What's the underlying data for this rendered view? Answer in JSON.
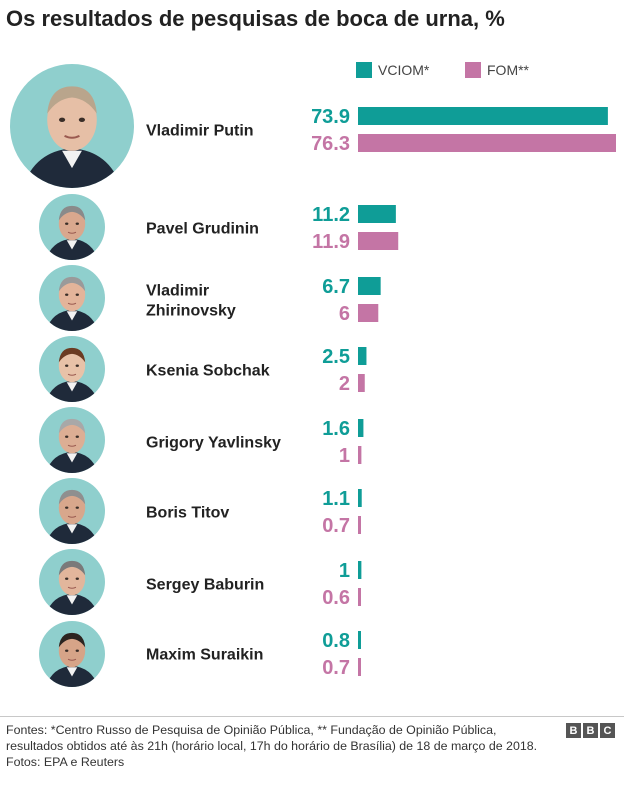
{
  "title": "Os resultados de pesquisas de boca de urna, %",
  "legend": [
    {
      "label": "VCIOM*",
      "color": "#0f9d97"
    },
    {
      "label": "FOM**",
      "color": "#c475a5"
    }
  ],
  "chart_data": {
    "type": "bar",
    "orientation": "horizontal",
    "title": "Os resultados de pesquisas de boca de urna, %",
    "categories": [
      "Vladimir Putin",
      "Pavel Grudinin",
      "Vladimir Zhirinovsky",
      "Ksenia Sobchak",
      "Grigory Yavlinsky",
      "Boris Titov",
      "Sergey Baburin",
      "Maxim Suraikin"
    ],
    "series": [
      {
        "name": "VCIOM*",
        "color": "#0f9d97",
        "values": [
          73.9,
          11.2,
          6.7,
          2.5,
          1.6,
          1.1,
          1,
          0.8
        ],
        "labels": [
          "73.9",
          "11.2",
          "6.7",
          "2.5",
          "1.6",
          "1.1",
          "1",
          "0.8"
        ]
      },
      {
        "name": "FOM**",
        "color": "#c475a5",
        "values": [
          76.3,
          11.9,
          6,
          2,
          1,
          0.7,
          0.6,
          0.7
        ],
        "labels": [
          "76.3",
          "11.9",
          "6",
          "2",
          "1",
          "0.7",
          "0.6",
          "0.7"
        ]
      }
    ],
    "xlim": [
      0,
      76.3
    ],
    "grid": false,
    "legend_position": "top-right"
  },
  "candidates": [
    {
      "name_lines": [
        "Vladimir Putin"
      ],
      "photo": "Vladimir Putin portrait"
    },
    {
      "name_lines": [
        "Pavel Grudinin"
      ],
      "photo": "Pavel Grudinin portrait"
    },
    {
      "name_lines": [
        "Vladimir",
        "Zhirinovsky"
      ],
      "photo": "Vladimir Zhirinovsky portrait"
    },
    {
      "name_lines": [
        "Ksenia Sobchak"
      ],
      "photo": "Ksenia Sobchak portrait"
    },
    {
      "name_lines": [
        "Grigory Yavlinsky"
      ],
      "photo": "Grigory Yavlinsky portrait"
    },
    {
      "name_lines": [
        "Boris Titov"
      ],
      "photo": "Boris Titov portrait"
    },
    {
      "name_lines": [
        "Sergey Baburin"
      ],
      "photo": "Sergey Baburin portrait"
    },
    {
      "name_lines": [
        "Maxim Suraikin"
      ],
      "photo": "Maxim Suraikin portrait"
    }
  ],
  "footer": {
    "sources": "Fontes: *Centro Russo de Pesquisa de Opinião Pública, ** Fundação de Opinião Pública, resultados obtidos até às 21h (horário local, 17h do horário de Brasília) de 18 de março de 2018.",
    "photos": "Fotos: EPA e Reuters",
    "logo_letters": [
      "B",
      "B",
      "C"
    ]
  }
}
